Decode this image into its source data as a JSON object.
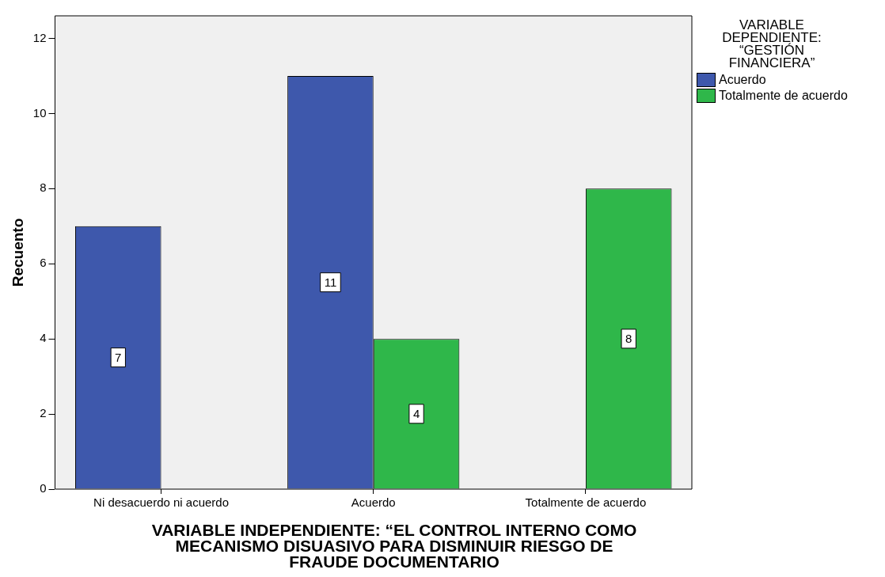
{
  "chart_data": {
    "type": "bar",
    "xlabel": "VARIABLE INDEPENDIENTE: “EL CONTROL INTERNO COMO MECANISMO DISUASIVO PARA DISMINUIR RIESGO DE FRAUDE DOCUMENTARIO",
    "ylabel": "Recuento",
    "legend_title": "VARIABLE DEPENDIENTE: “GESTIÓN FINANCIERA”",
    "categories": [
      "Ni desacuerdo ni acuerdo",
      "Acuerdo",
      "Totalmente de acuerdo"
    ],
    "series": [
      {
        "name": "Acuerdo",
        "color": "#3e58ac",
        "values": [
          7,
          11,
          null
        ]
      },
      {
        "name": "Totalmente de acuerdo",
        "color": "#2fb74a",
        "values": [
          null,
          4,
          8
        ]
      }
    ],
    "ylim": [
      0,
      12.6
    ],
    "yticks": [
      0,
      2,
      4,
      6,
      8,
      10,
      12
    ],
    "data_labels": true,
    "legend": "top right"
  }
}
